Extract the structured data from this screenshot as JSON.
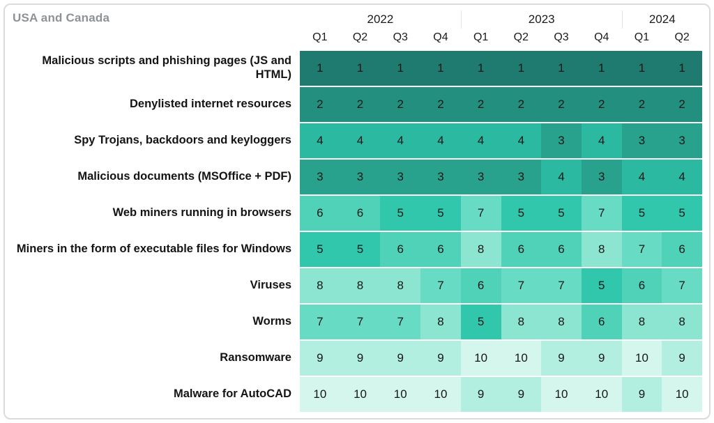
{
  "chart_data": {
    "type": "heatmap",
    "title": "USA and Canada",
    "subtitle": "",
    "legend": "none",
    "grid": "off",
    "value_range": [
      1,
      10
    ],
    "value_meaning": "rank (1 = darkest teal, 10 = lightest mint)",
    "year_groups": [
      {
        "label": "2022",
        "quarters": [
          "Q1",
          "Q2",
          "Q3",
          "Q4"
        ]
      },
      {
        "label": "2023",
        "quarters": [
          "Q1",
          "Q2",
          "Q3",
          "Q4"
        ]
      },
      {
        "label": "2024",
        "quarters": [
          "Q1",
          "Q2"
        ]
      }
    ],
    "columns": [
      "2022 Q1",
      "2022 Q2",
      "2022 Q3",
      "2022 Q4",
      "2023 Q1",
      "2023 Q2",
      "2023 Q3",
      "2023 Q4",
      "2024 Q1",
      "2024 Q2"
    ],
    "rows": [
      {
        "label": "Malicious scripts and phishing pages (JS and HTML)",
        "values": [
          1,
          1,
          1,
          1,
          1,
          1,
          1,
          1,
          1,
          1
        ]
      },
      {
        "label": "Denylisted internet resources",
        "values": [
          2,
          2,
          2,
          2,
          2,
          2,
          2,
          2,
          2,
          2
        ]
      },
      {
        "label": "Spy Trojans, backdoors and keyloggers",
        "values": [
          4,
          4,
          4,
          4,
          4,
          4,
          3,
          4,
          3,
          3
        ]
      },
      {
        "label": "Malicious documents (MSOffice + PDF)",
        "values": [
          3,
          3,
          3,
          3,
          3,
          3,
          4,
          3,
          4,
          4
        ]
      },
      {
        "label": "Web miners running in browsers",
        "values": [
          6,
          6,
          5,
          5,
          7,
          5,
          5,
          7,
          5,
          5
        ]
      },
      {
        "label": "Miners in the form of executable files for Windows",
        "values": [
          5,
          5,
          6,
          6,
          8,
          6,
          6,
          8,
          7,
          6
        ]
      },
      {
        "label": "Viruses",
        "values": [
          8,
          8,
          8,
          7,
          6,
          7,
          7,
          5,
          6,
          7
        ]
      },
      {
        "label": "Worms",
        "values": [
          7,
          7,
          7,
          8,
          5,
          8,
          8,
          6,
          8,
          8
        ]
      },
      {
        "label": "Ransomware",
        "values": [
          9,
          9,
          9,
          9,
          10,
          10,
          9,
          9,
          10,
          9
        ]
      },
      {
        "label": "Malware for AutoCAD",
        "values": [
          10,
          10,
          10,
          10,
          9,
          9,
          10,
          10,
          9,
          10
        ]
      }
    ],
    "palette": {
      "1": "#1f7b6f",
      "2": "#23907f",
      "3": "#28a28d",
      "4": "#2cb9a2",
      "5": "#30c7ac",
      "6": "#50d2b9",
      "7": "#68dbc4",
      "8": "#8ce5d1",
      "9": "#b3efe1",
      "10": "#d5f6ec"
    },
    "colors": {
      "cell_text": "#161616",
      "header_text": "#1a1a1a",
      "title_text": "#8e9296",
      "card_border": "#d9dbdd",
      "row_separator": "#ffffff"
    }
  }
}
